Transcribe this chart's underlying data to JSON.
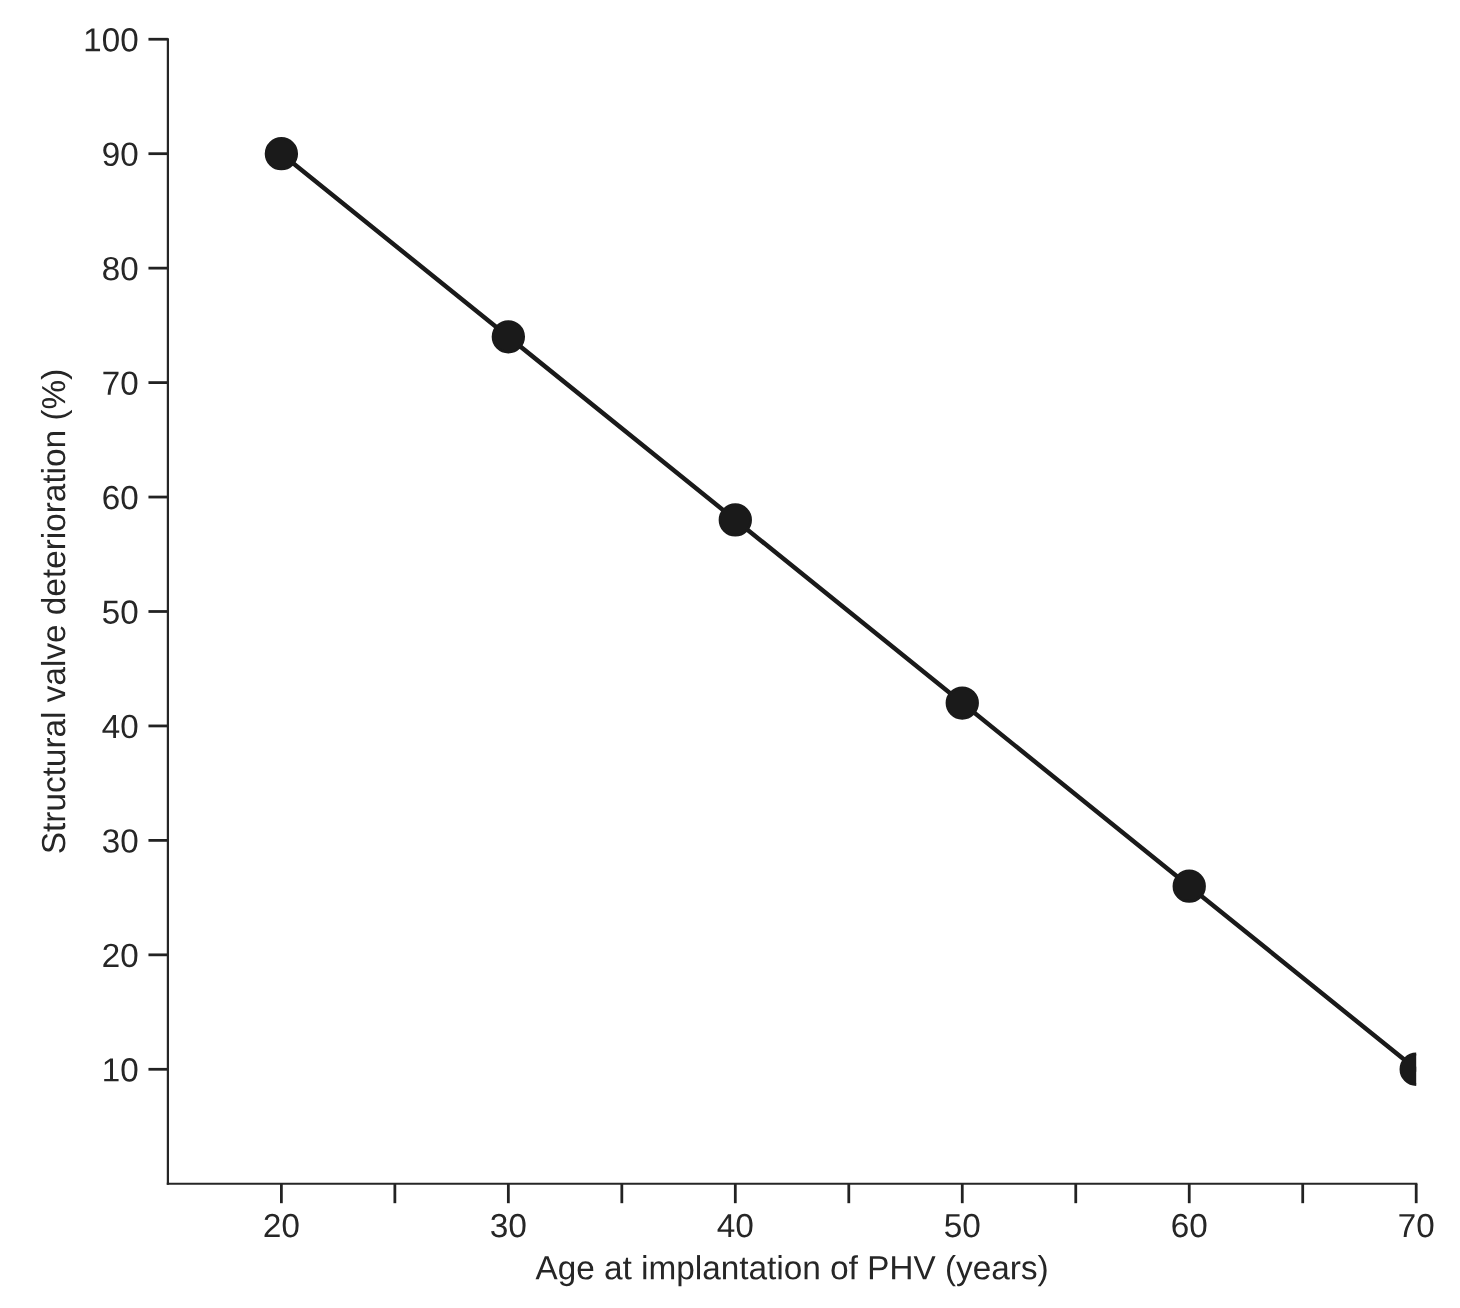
{
  "chart_data": {
    "type": "line",
    "xlabel": "Age at implantation of PHV (years)",
    "ylabel": "Structural valve deterioration (%)",
    "x": [
      20,
      30,
      40,
      50,
      60,
      70
    ],
    "series": [
      {
        "color": "#1a1a1a",
        "values": [
          90,
          74,
          58,
          42,
          26,
          10
        ]
      }
    ],
    "marker": "circle",
    "line_style": "solid",
    "grid": false,
    "legend": false,
    "xlim": [
      15,
      70
    ],
    "ylim": [
      0,
      100
    ],
    "xticks": [
      20,
      {
        "value": 25,
        "label": null
      },
      30,
      {
        "value": 35,
        "label": null
      },
      40,
      {
        "value": 45,
        "label": null
      },
      50,
      {
        "value": 55,
        "label": null
      },
      60,
      {
        "value": 65,
        "label": null
      },
      70
    ],
    "yticks": [
      10,
      20,
      30,
      40,
      50,
      60,
      70,
      80,
      90,
      100
    ]
  }
}
